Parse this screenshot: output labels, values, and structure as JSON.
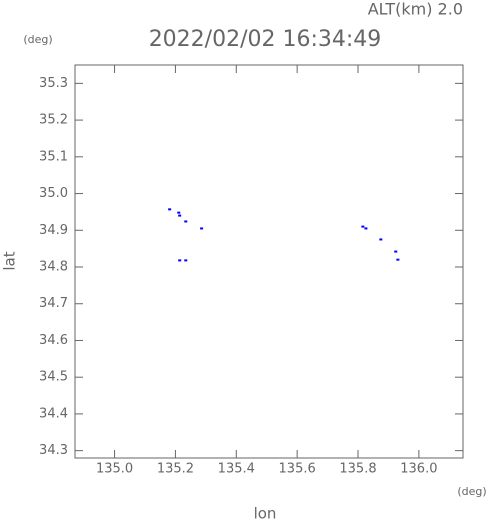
{
  "chart_data": {
    "type": "scatter",
    "title": "2022/02/02 16:34:49",
    "subtitle": "ALT(km) 2.0",
    "y_unit": "(deg)",
    "x_unit": "(deg)",
    "xlabel": "lon",
    "ylabel": "lat",
    "x": [
      135.181,
      135.211,
      135.214,
      135.234,
      135.286,
      135.214,
      135.234,
      135.816,
      135.826,
      135.875,
      135.924,
      135.931
    ],
    "values": [
      34.957,
      34.948,
      34.94,
      34.924,
      34.905,
      34.818,
      34.818,
      34.91,
      34.905,
      34.875,
      34.842,
      34.82
    ],
    "color": "#0000ff",
    "xlim": [
      134.87,
      136.145
    ],
    "xticks": [
      {
        "value": 135,
        "label": "135.0"
      },
      135.2,
      135.4,
      135.6,
      135.8,
      {
        "value": 136,
        "label": "136.0"
      }
    ],
    "ylim": [
      34.28,
      35.35
    ],
    "yticks": [
      34.3,
      34.4,
      34.5,
      34.6,
      34.7,
      34.8,
      34.9,
      {
        "value": 35,
        "label": "35.0"
      },
      35.1,
      35.2,
      35.3
    ]
  }
}
